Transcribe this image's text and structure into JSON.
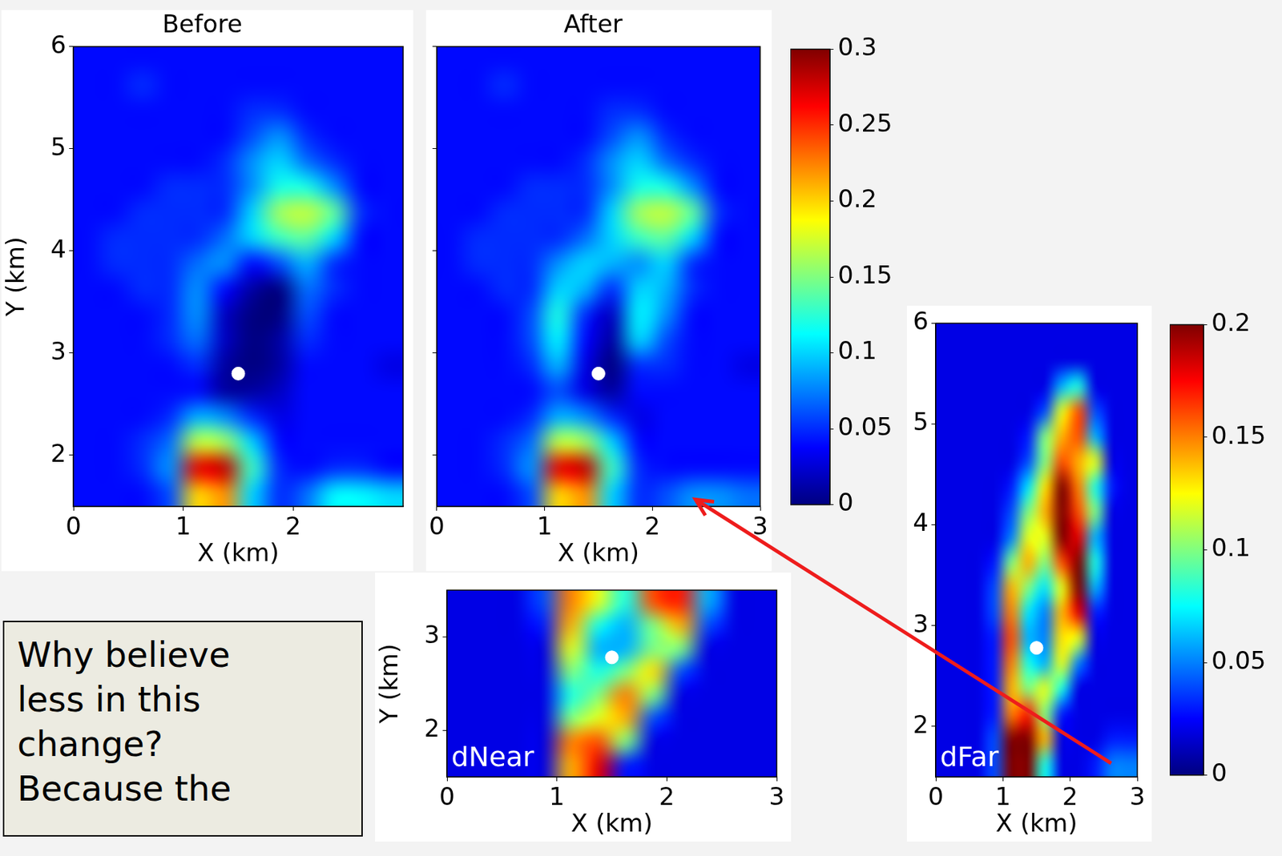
{
  "chart_data": [
    {
      "type": "heatmap",
      "title": "Before",
      "x_label": "X (km)",
      "y_label": "Y (km)",
      "x": [
        0.125,
        0.375,
        0.625,
        0.875,
        1.125,
        1.375,
        1.625,
        1.875,
        2.125,
        2.375,
        2.625,
        2.875
      ],
      "y": [
        1.625,
        1.875,
        2.125,
        2.375,
        2.625,
        2.875,
        3.125,
        3.375,
        3.625,
        3.875,
        4.125,
        4.375,
        4.625,
        4.875,
        5.125,
        5.375,
        5.625,
        5.875
      ],
      "cells": [
        [
          0.04,
          0.04,
          0.04,
          0.06,
          0.2,
          0.22,
          0.1,
          0.05,
          0.07,
          0.11,
          0.11,
          0.1
        ],
        [
          0.04,
          0.04,
          0.05,
          0.08,
          0.27,
          0.28,
          0.13,
          0.05,
          0.04,
          0.05,
          0.05,
          0.04
        ],
        [
          0.04,
          0.04,
          0.05,
          0.07,
          0.17,
          0.16,
          0.1,
          0.04,
          0.04,
          0.04,
          0.04,
          0.04
        ],
        [
          0.04,
          0.04,
          0.04,
          0.05,
          0.09,
          0.08,
          0.05,
          0.03,
          0.04,
          0.04,
          0.04,
          0.04
        ],
        [
          0.04,
          0.04,
          0.04,
          0.04,
          0.04,
          0.01,
          0.01,
          0.02,
          0.04,
          0.04,
          0.04,
          0.04
        ],
        [
          0.04,
          0.04,
          0.04,
          0.04,
          0.05,
          0.01,
          0.0,
          0.01,
          0.04,
          0.04,
          0.04,
          0.03
        ],
        [
          0.04,
          0.04,
          0.04,
          0.05,
          0.07,
          0.02,
          0.0,
          0.01,
          0.05,
          0.04,
          0.04,
          0.04
        ],
        [
          0.04,
          0.04,
          0.04,
          0.05,
          0.08,
          0.02,
          0.0,
          0.0,
          0.06,
          0.04,
          0.04,
          0.04
        ],
        [
          0.04,
          0.04,
          0.05,
          0.05,
          0.08,
          0.04,
          0.01,
          0.0,
          0.07,
          0.05,
          0.04,
          0.04
        ],
        [
          0.04,
          0.05,
          0.05,
          0.05,
          0.07,
          0.08,
          0.04,
          0.06,
          0.09,
          0.05,
          0.04,
          0.04
        ],
        [
          0.04,
          0.05,
          0.05,
          0.05,
          0.05,
          0.07,
          0.1,
          0.13,
          0.14,
          0.1,
          0.04,
          0.04
        ],
        [
          0.04,
          0.04,
          0.05,
          0.05,
          0.05,
          0.05,
          0.1,
          0.16,
          0.17,
          0.14,
          0.05,
          0.04
        ],
        [
          0.04,
          0.04,
          0.04,
          0.05,
          0.05,
          0.05,
          0.08,
          0.12,
          0.12,
          0.08,
          0.04,
          0.04
        ],
        [
          0.04,
          0.04,
          0.04,
          0.04,
          0.04,
          0.05,
          0.08,
          0.1,
          0.07,
          0.05,
          0.04,
          0.04
        ],
        [
          0.04,
          0.04,
          0.04,
          0.04,
          0.04,
          0.04,
          0.06,
          0.08,
          0.05,
          0.04,
          0.04,
          0.04
        ],
        [
          0.04,
          0.04,
          0.04,
          0.04,
          0.04,
          0.04,
          0.05,
          0.05,
          0.04,
          0.04,
          0.04,
          0.04
        ],
        [
          0.04,
          0.04,
          0.05,
          0.04,
          0.04,
          0.04,
          0.04,
          0.04,
          0.04,
          0.04,
          0.04,
          0.04
        ],
        [
          0.04,
          0.04,
          0.04,
          0.04,
          0.04,
          0.04,
          0.04,
          0.04,
          0.04,
          0.04,
          0.04,
          0.04
        ]
      ],
      "xlim": [
        0,
        3
      ],
      "ylim": [
        1.5,
        6
      ],
      "xticks": [
        0,
        1,
        2
      ],
      "yticks": [
        2,
        3,
        4,
        5,
        6
      ],
      "grid": false,
      "markers": [
        {
          "x": 1.5,
          "y": 2.8
        }
      ]
    },
    {
      "type": "heatmap",
      "title": "After",
      "x_label": "X (km)",
      "x": [
        0.125,
        0.375,
        0.625,
        0.875,
        1.125,
        1.375,
        1.625,
        1.875,
        2.125,
        2.375,
        2.625,
        2.875
      ],
      "y": [
        1.625,
        1.875,
        2.125,
        2.375,
        2.625,
        2.875,
        3.125,
        3.375,
        3.625,
        3.875,
        4.125,
        4.375,
        4.625,
        4.875,
        5.125,
        5.375,
        5.625,
        5.875
      ],
      "cells": [
        [
          0.04,
          0.04,
          0.04,
          0.06,
          0.2,
          0.22,
          0.1,
          0.05,
          0.06,
          0.08,
          0.08,
          0.07
        ],
        [
          0.04,
          0.04,
          0.05,
          0.08,
          0.27,
          0.28,
          0.13,
          0.05,
          0.04,
          0.04,
          0.04,
          0.04
        ],
        [
          0.04,
          0.04,
          0.05,
          0.07,
          0.17,
          0.16,
          0.1,
          0.04,
          0.04,
          0.04,
          0.04,
          0.04
        ],
        [
          0.04,
          0.04,
          0.04,
          0.05,
          0.09,
          0.08,
          0.05,
          0.03,
          0.04,
          0.04,
          0.04,
          0.04
        ],
        [
          0.04,
          0.04,
          0.04,
          0.04,
          0.06,
          0.03,
          0.01,
          0.04,
          0.04,
          0.04,
          0.04,
          0.04
        ],
        [
          0.04,
          0.04,
          0.04,
          0.05,
          0.09,
          0.03,
          0.0,
          0.05,
          0.05,
          0.04,
          0.04,
          0.03
        ],
        [
          0.04,
          0.04,
          0.04,
          0.06,
          0.11,
          0.04,
          0.01,
          0.1,
          0.06,
          0.04,
          0.04,
          0.04
        ],
        [
          0.04,
          0.04,
          0.04,
          0.06,
          0.12,
          0.05,
          0.02,
          0.11,
          0.08,
          0.04,
          0.04,
          0.04
        ],
        [
          0.04,
          0.04,
          0.05,
          0.05,
          0.1,
          0.09,
          0.05,
          0.1,
          0.09,
          0.05,
          0.04,
          0.04
        ],
        [
          0.04,
          0.05,
          0.05,
          0.05,
          0.08,
          0.1,
          0.09,
          0.08,
          0.1,
          0.05,
          0.04,
          0.04
        ],
        [
          0.04,
          0.05,
          0.05,
          0.05,
          0.05,
          0.07,
          0.1,
          0.13,
          0.14,
          0.1,
          0.04,
          0.04
        ],
        [
          0.04,
          0.04,
          0.05,
          0.05,
          0.05,
          0.05,
          0.1,
          0.16,
          0.17,
          0.14,
          0.05,
          0.04
        ],
        [
          0.04,
          0.04,
          0.04,
          0.05,
          0.05,
          0.05,
          0.08,
          0.12,
          0.12,
          0.08,
          0.04,
          0.04
        ],
        [
          0.04,
          0.04,
          0.04,
          0.04,
          0.04,
          0.05,
          0.08,
          0.1,
          0.07,
          0.05,
          0.04,
          0.04
        ],
        [
          0.04,
          0.04,
          0.04,
          0.04,
          0.04,
          0.04,
          0.06,
          0.08,
          0.05,
          0.04,
          0.04,
          0.04
        ],
        [
          0.04,
          0.04,
          0.04,
          0.04,
          0.04,
          0.04,
          0.05,
          0.05,
          0.04,
          0.04,
          0.04,
          0.04
        ],
        [
          0.04,
          0.04,
          0.05,
          0.04,
          0.04,
          0.04,
          0.04,
          0.04,
          0.04,
          0.04,
          0.04,
          0.04
        ],
        [
          0.04,
          0.04,
          0.04,
          0.04,
          0.04,
          0.04,
          0.04,
          0.04,
          0.04,
          0.04,
          0.04,
          0.04
        ]
      ],
      "xlim": [
        0,
        3
      ],
      "ylim": [
        1.5,
        6
      ],
      "xticks": [
        0,
        1,
        2,
        3
      ],
      "yticks": [
        2,
        3,
        4,
        5,
        6
      ],
      "grid": false,
      "tick_labels": "x",
      "markers": [
        {
          "x": 1.5,
          "y": 2.8
        }
      ],
      "colorbar": {
        "range": [
          0,
          0.3
        ],
        "ticks": [
          0,
          0.05,
          0.1,
          0.15,
          0.2,
          0.25,
          0.3
        ]
      }
    },
    {
      "type": "heatmap",
      "annotation": "dNear",
      "x_label": "X (km)",
      "y_label": "Y (km)",
      "x": [
        0.125,
        0.375,
        0.625,
        0.875,
        1.125,
        1.375,
        1.625,
        1.875,
        2.125,
        2.375,
        2.625,
        2.875
      ],
      "y": [
        1.625,
        1.875,
        2.125,
        2.375,
        2.625,
        2.875,
        3.125,
        3.375
      ],
      "cells": [
        [
          0.02,
          0.02,
          0.02,
          0.02,
          0.14,
          0.18,
          0.03,
          0.02,
          0.02,
          0.02,
          0.02,
          0.02
        ],
        [
          0.02,
          0.02,
          0.02,
          0.02,
          0.15,
          0.16,
          0.1,
          0.02,
          0.02,
          0.02,
          0.02,
          0.02
        ],
        [
          0.02,
          0.02,
          0.02,
          0.02,
          0.1,
          0.12,
          0.14,
          0.04,
          0.02,
          0.02,
          0.02,
          0.02
        ],
        [
          0.02,
          0.02,
          0.02,
          0.02,
          0.08,
          0.1,
          0.15,
          0.1,
          0.02,
          0.02,
          0.02,
          0.02
        ],
        [
          0.02,
          0.02,
          0.02,
          0.02,
          0.1,
          0.08,
          0.1,
          0.13,
          0.04,
          0.02,
          0.02,
          0.02
        ],
        [
          0.02,
          0.02,
          0.02,
          0.02,
          0.12,
          0.06,
          0.06,
          0.1,
          0.1,
          0.02,
          0.02,
          0.02
        ],
        [
          0.02,
          0.02,
          0.02,
          0.03,
          0.14,
          0.08,
          0.06,
          0.1,
          0.14,
          0.04,
          0.02,
          0.02
        ],
        [
          0.02,
          0.02,
          0.02,
          0.04,
          0.15,
          0.12,
          0.08,
          0.16,
          0.17,
          0.06,
          0.02,
          0.02
        ]
      ],
      "xlim": [
        0,
        3
      ],
      "ylim": [
        1.5,
        3.5
      ],
      "xticks": [
        0,
        1,
        2,
        3
      ],
      "yticks": [
        2,
        3
      ],
      "grid": false,
      "markers": [
        {
          "x": 1.5,
          "y": 2.78
        }
      ]
    },
    {
      "type": "heatmap",
      "annotation": "dFar",
      "x_label": "X (km)",
      "x": [
        0.125,
        0.375,
        0.625,
        0.875,
        1.125,
        1.375,
        1.625,
        1.875,
        2.125,
        2.375,
        2.625,
        2.875
      ],
      "y": [
        1.625,
        1.875,
        2.125,
        2.375,
        2.625,
        2.875,
        3.125,
        3.375,
        3.625,
        3.875,
        4.125,
        4.375,
        4.625,
        4.875,
        5.125,
        5.375,
        5.625,
        5.875
      ],
      "cells": [
        [
          0.02,
          0.02,
          0.02,
          0.04,
          0.2,
          0.2,
          0.08,
          0.02,
          0.02,
          0.03,
          0.05,
          0.05
        ],
        [
          0.02,
          0.02,
          0.02,
          0.04,
          0.2,
          0.2,
          0.14,
          0.02,
          0.02,
          0.02,
          0.03,
          0.03
        ],
        [
          0.02,
          0.02,
          0.02,
          0.03,
          0.15,
          0.17,
          0.1,
          0.03,
          0.02,
          0.02,
          0.02,
          0.02
        ],
        [
          0.02,
          0.02,
          0.02,
          0.03,
          0.14,
          0.1,
          0.12,
          0.08,
          0.02,
          0.02,
          0.02,
          0.02
        ],
        [
          0.02,
          0.02,
          0.02,
          0.03,
          0.15,
          0.08,
          0.06,
          0.12,
          0.05,
          0.02,
          0.02,
          0.02
        ],
        [
          0.02,
          0.02,
          0.02,
          0.03,
          0.16,
          0.06,
          0.05,
          0.13,
          0.12,
          0.02,
          0.02,
          0.02
        ],
        [
          0.02,
          0.02,
          0.02,
          0.04,
          0.15,
          0.07,
          0.05,
          0.14,
          0.18,
          0.03,
          0.02,
          0.02
        ],
        [
          0.02,
          0.02,
          0.02,
          0.04,
          0.14,
          0.1,
          0.07,
          0.12,
          0.2,
          0.06,
          0.02,
          0.02
        ],
        [
          0.02,
          0.02,
          0.02,
          0.03,
          0.1,
          0.14,
          0.1,
          0.16,
          0.2,
          0.08,
          0.02,
          0.02
        ],
        [
          0.02,
          0.02,
          0.02,
          0.02,
          0.05,
          0.12,
          0.12,
          0.2,
          0.18,
          0.06,
          0.02,
          0.02
        ],
        [
          0.02,
          0.02,
          0.02,
          0.02,
          0.04,
          0.1,
          0.14,
          0.2,
          0.16,
          0.1,
          0.02,
          0.02
        ],
        [
          0.02,
          0.02,
          0.02,
          0.02,
          0.03,
          0.07,
          0.13,
          0.2,
          0.15,
          0.08,
          0.03,
          0.02
        ],
        [
          0.02,
          0.02,
          0.02,
          0.02,
          0.02,
          0.04,
          0.1,
          0.16,
          0.14,
          0.12,
          0.02,
          0.02
        ],
        [
          0.02,
          0.02,
          0.02,
          0.02,
          0.02,
          0.03,
          0.1,
          0.14,
          0.16,
          0.06,
          0.02,
          0.02
        ],
        [
          0.02,
          0.02,
          0.02,
          0.02,
          0.02,
          0.02,
          0.04,
          0.12,
          0.16,
          0.04,
          0.02,
          0.02
        ],
        [
          0.02,
          0.02,
          0.02,
          0.02,
          0.02,
          0.02,
          0.02,
          0.06,
          0.08,
          0.02,
          0.02,
          0.02
        ],
        [
          0.02,
          0.02,
          0.02,
          0.02,
          0.02,
          0.02,
          0.02,
          0.02,
          0.02,
          0.02,
          0.02,
          0.02
        ],
        [
          0.02,
          0.02,
          0.02,
          0.02,
          0.02,
          0.02,
          0.02,
          0.02,
          0.02,
          0.02,
          0.02,
          0.02
        ]
      ],
      "xlim": [
        0,
        3
      ],
      "ylim": [
        1.5,
        6
      ],
      "xticks": [
        0,
        1,
        2,
        3
      ],
      "yticks": [
        2,
        3,
        4,
        5,
        6
      ],
      "grid": false,
      "markers": [
        {
          "x": 1.5,
          "y": 2.78
        }
      ],
      "colorbar": {
        "range": [
          0,
          0.2
        ],
        "ticks": [
          0,
          0.05,
          0.1,
          0.15,
          0.2
        ]
      }
    }
  ],
  "note": {
    "lines": [
      "Why believe",
      "less in this",
      "change?",
      "Because the"
    ]
  }
}
